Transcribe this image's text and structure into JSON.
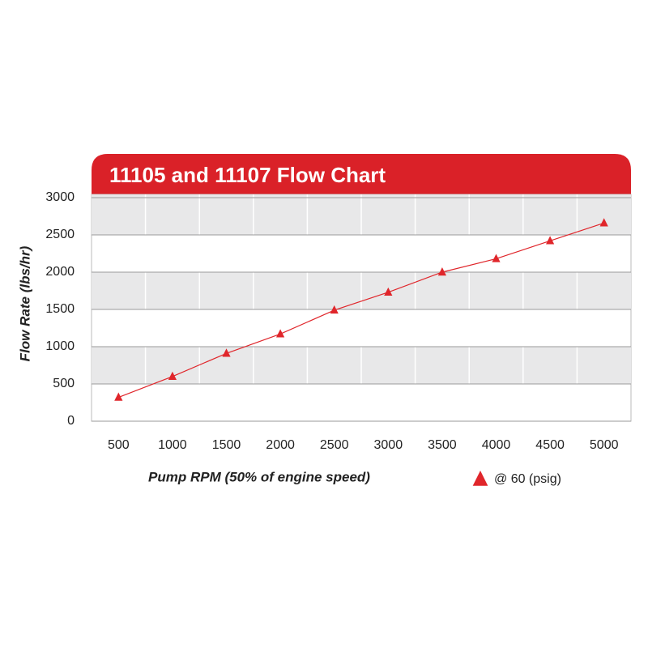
{
  "chart_data": {
    "type": "line",
    "title": "11105 and 11107 Flow Chart",
    "x_label": "Pump RPM (50% of engine speed)",
    "y_label": "Flow Rate (lbs/hr)",
    "categories": [
      "500",
      "1000",
      "1500",
      "2000",
      "2500",
      "3000",
      "3500",
      "4000",
      "4500",
      "5000"
    ],
    "series": [
      {
        "name": "@ 60 (psig)",
        "color": "#e0262b",
        "values": [
          320,
          600,
          910,
          1170,
          1490,
          1730,
          2000,
          2180,
          2420,
          2660
        ]
      }
    ],
    "ylim": [
      0,
      3000
    ],
    "yticks": [
      0,
      500,
      1000,
      1500,
      2000,
      2500,
      3000
    ],
    "grid": true
  }
}
